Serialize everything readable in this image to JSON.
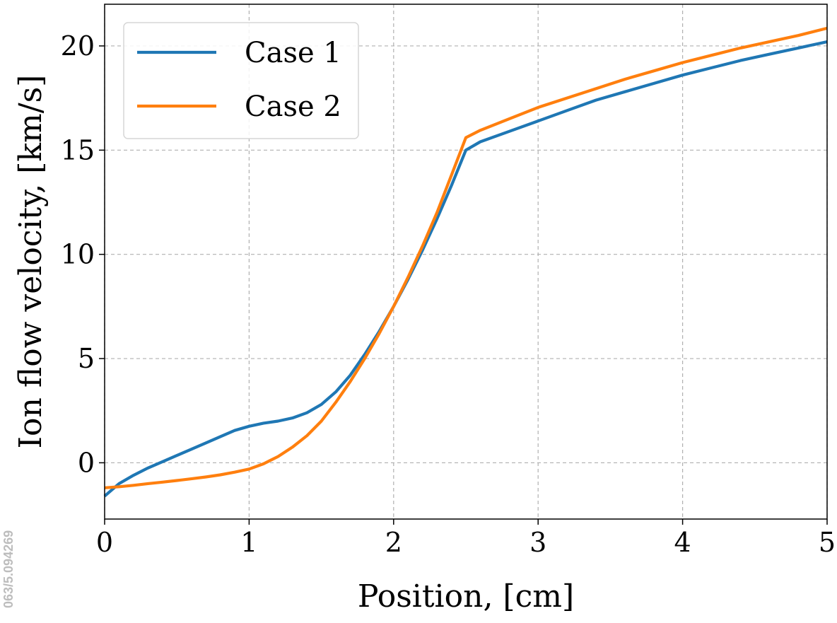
{
  "side_text": {
    "doi_fragment": "063/5.094269"
  },
  "chart_data": {
    "type": "line",
    "title": "",
    "xlabel": "Position, [cm]",
    "ylabel": "Ion flow velocity, [km/s]",
    "xlim": [
      0,
      5
    ],
    "ylim": [
      -2.7,
      22
    ],
    "xticks": [
      0,
      1,
      2,
      3,
      4,
      5
    ],
    "yticks": [
      0,
      5,
      10,
      15,
      20
    ],
    "grid": true,
    "legend_position": "top-left",
    "series": [
      {
        "name": "Case 1",
        "color": "#1f77b4",
        "x": [
          0,
          0.1,
          0.2,
          0.3,
          0.4,
          0.5,
          0.6,
          0.7,
          0.8,
          0.9,
          1.0,
          1.1,
          1.2,
          1.3,
          1.4,
          1.5,
          1.6,
          1.7,
          1.8,
          1.9,
          2.0,
          2.1,
          2.2,
          2.3,
          2.4,
          2.5,
          2.6,
          2.8,
          3.0,
          3.2,
          3.4,
          3.6,
          3.8,
          4.0,
          4.2,
          4.4,
          4.6,
          4.8,
          5.0
        ],
        "y": [
          -1.6,
          -1.0,
          -0.6,
          -0.25,
          0.05,
          0.35,
          0.65,
          0.95,
          1.25,
          1.55,
          1.75,
          1.9,
          2.0,
          2.15,
          2.4,
          2.8,
          3.4,
          4.2,
          5.2,
          6.3,
          7.5,
          8.8,
          10.2,
          11.7,
          13.3,
          15.0,
          15.4,
          15.9,
          16.4,
          16.9,
          17.4,
          17.8,
          18.2,
          18.6,
          18.95,
          19.3,
          19.6,
          19.9,
          20.2
        ]
      },
      {
        "name": "Case 2",
        "color": "#ff7f0e",
        "x": [
          0,
          0.1,
          0.2,
          0.3,
          0.4,
          0.5,
          0.6,
          0.7,
          0.8,
          0.9,
          1.0,
          1.1,
          1.2,
          1.3,
          1.4,
          1.5,
          1.6,
          1.7,
          1.8,
          1.9,
          2.0,
          2.1,
          2.2,
          2.3,
          2.4,
          2.5,
          2.6,
          2.8,
          3.0,
          3.2,
          3.4,
          3.6,
          3.8,
          4.0,
          4.2,
          4.4,
          4.6,
          4.8,
          5.0
        ],
        "y": [
          -1.2,
          -1.15,
          -1.08,
          -1.0,
          -0.93,
          -0.85,
          -0.77,
          -0.68,
          -0.58,
          -0.45,
          -0.3,
          -0.05,
          0.3,
          0.75,
          1.3,
          2.0,
          2.9,
          3.9,
          5.0,
          6.2,
          7.5,
          8.9,
          10.4,
          12.0,
          13.8,
          15.6,
          15.95,
          16.5,
          17.05,
          17.5,
          17.95,
          18.4,
          18.8,
          19.2,
          19.55,
          19.9,
          20.2,
          20.5,
          20.85
        ]
      }
    ]
  }
}
